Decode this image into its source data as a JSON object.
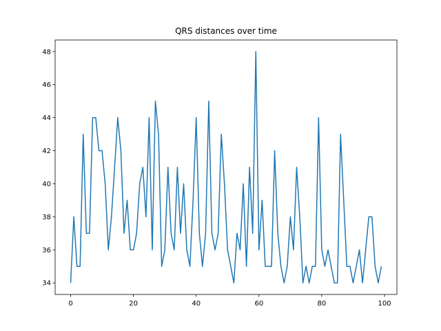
{
  "chart_data": {
    "type": "line",
    "title": "QRS distances over time",
    "xlabel": "",
    "ylabel": "",
    "xlim": [
      -4.95,
      103.95
    ],
    "ylim": [
      33.3,
      48.7
    ],
    "x_ticks": [
      0,
      20,
      40,
      60,
      80,
      100
    ],
    "y_ticks": [
      34,
      36,
      38,
      40,
      42,
      44,
      46,
      48
    ],
    "grid": false,
    "colors": {
      "line": "#1f77b4",
      "axes": "#000000",
      "background": "#ffffff"
    },
    "series": [
      {
        "x": [
          0,
          1,
          2,
          3,
          4,
          5,
          6,
          7,
          8,
          9,
          10,
          11,
          12,
          13,
          14,
          15,
          16,
          17,
          18,
          19,
          20,
          21,
          22,
          23,
          24,
          25,
          26,
          27,
          28,
          29,
          30,
          31,
          32,
          33,
          34,
          35,
          36,
          37,
          38,
          39,
          40,
          41,
          42,
          43,
          44,
          45,
          46,
          47,
          48,
          49,
          50,
          51,
          52,
          53,
          54,
          55,
          56,
          57,
          58,
          59,
          60,
          61,
          62,
          63,
          64,
          65,
          66,
          67,
          68,
          69,
          70,
          71,
          72,
          73,
          74,
          75,
          76,
          77,
          78,
          79,
          80,
          81,
          82,
          83,
          84,
          85,
          86,
          87,
          88,
          89,
          90,
          91,
          92,
          93,
          94,
          95,
          96,
          97,
          98,
          99
        ],
        "values": [
          34,
          38,
          35,
          35,
          43,
          37,
          37,
          44,
          44,
          42,
          42,
          40,
          36,
          38,
          41,
          44,
          42,
          37,
          39,
          36,
          36,
          37,
          40,
          41,
          38,
          44,
          36,
          45,
          43,
          35,
          36,
          41,
          37,
          36,
          41,
          37,
          40,
          36,
          35,
          39,
          44,
          37,
          35,
          37,
          45,
          37,
          36,
          37,
          43,
          40,
          36,
          35,
          34,
          37,
          36,
          40,
          35,
          41,
          37,
          48,
          36,
          39,
          35,
          35,
          35,
          42,
          37,
          35,
          34,
          35,
          38,
          36,
          41,
          38,
          34,
          35,
          34,
          35,
          35,
          44,
          36,
          35,
          36,
          35,
          34,
          34,
          43,
          39,
          35,
          35,
          34,
          35,
          36,
          34,
          36,
          38,
          38,
          35,
          34,
          35
        ]
      }
    ]
  }
}
